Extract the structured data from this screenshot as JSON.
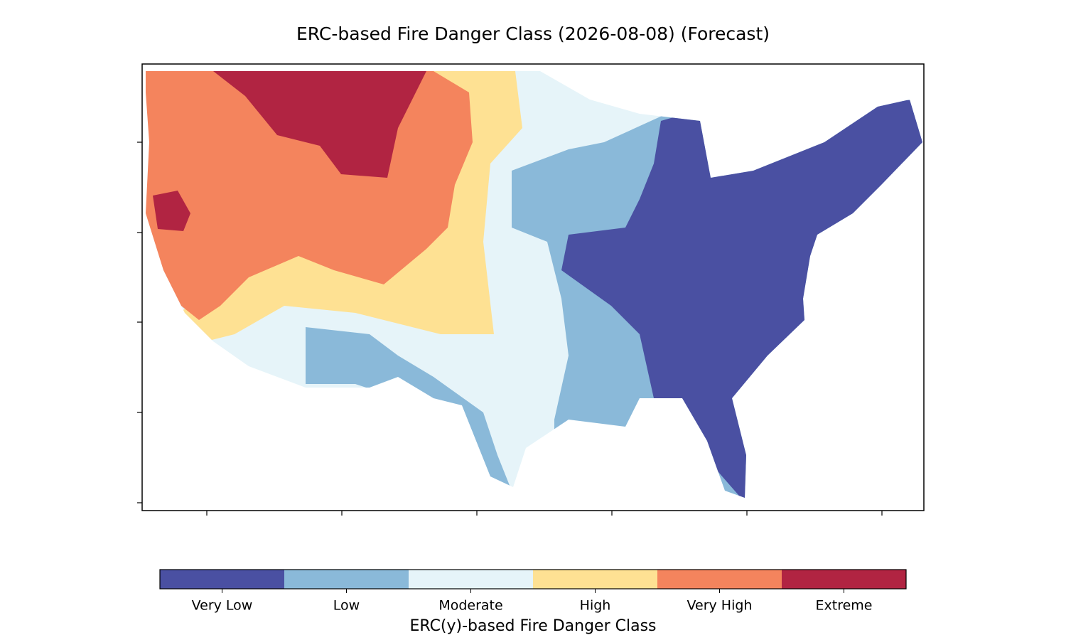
{
  "title": "ERC-based Fire Danger Class (2026-08-08) (Forecast)",
  "colorbar": {
    "label": "ERC(y)-based Fire Danger Class",
    "classes": [
      {
        "name": "Very Low",
        "color": "#4a50a2"
      },
      {
        "name": "Low",
        "color": "#8ab9d9"
      },
      {
        "name": "Moderate",
        "color": "#e6f4f9"
      },
      {
        "name": "High",
        "color": "#fee193"
      },
      {
        "name": "Very High",
        "color": "#f4845d"
      },
      {
        "name": "Extreme",
        "color": "#b12442"
      }
    ]
  }
}
